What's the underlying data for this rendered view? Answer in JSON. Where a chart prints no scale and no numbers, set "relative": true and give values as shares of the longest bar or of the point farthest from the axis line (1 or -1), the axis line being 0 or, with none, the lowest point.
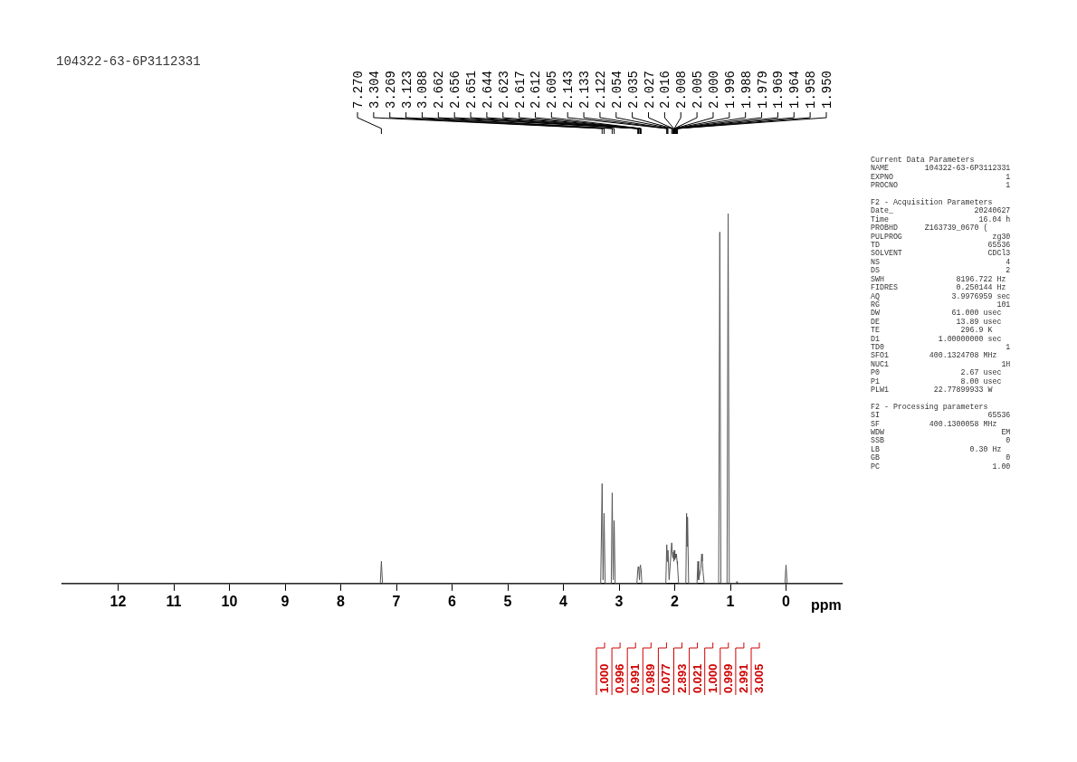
{
  "chart_data": {
    "type": "line",
    "title": "104322-63-6P3112331",
    "xlabel": "ppm",
    "relative": true,
    "xlim": [
      13,
      -1
    ],
    "xticks": [
      12,
      11,
      10,
      9,
      8,
      7,
      6,
      5,
      4,
      3,
      2,
      1,
      0
    ],
    "marker": "none",
    "legend": false,
    "series": [
      {
        "color": "#555555",
        "x": [
          13,
          7.29,
          7.27,
          7.25,
          3.33,
          3.304,
          3.287,
          3.269,
          3.25,
          3.14,
          3.123,
          3.105,
          3.088,
          3.07,
          2.68,
          2.662,
          2.656,
          2.651,
          2.644,
          2.633,
          2.623,
          2.617,
          2.612,
          2.605,
          2.59,
          2.16,
          2.143,
          2.133,
          2.122,
          2.1,
          2.054,
          2.035,
          2.027,
          2.016,
          2.008,
          2.0,
          1.996,
          1.988,
          1.979,
          1.969,
          1.958,
          1.95,
          1.93,
          1.8,
          1.787,
          1.778,
          1.77,
          1.75,
          1.6,
          1.583,
          1.57,
          1.53,
          1.515,
          1.505,
          1.49,
          1.47,
          1.21,
          1.19,
          1.17,
          1.06,
          1.04,
          1.02,
          0.9,
          0.88,
          0.86,
          0.02,
          0.0,
          -0.02,
          -1
        ],
        "values": [
          0,
          0,
          0.06,
          0,
          0,
          0.27,
          0.01,
          0.19,
          0,
          0,
          0.245,
          0.01,
          0.17,
          0,
          0,
          0.04,
          0.045,
          0.04,
          0.045,
          0.01,
          0.045,
          0.05,
          0.045,
          0.04,
          0,
          0,
          0.105,
          0.06,
          0.09,
          0.01,
          0.11,
          0.07,
          0.085,
          0.06,
          0.09,
          0.07,
          0.065,
          0.08,
          0.07,
          0.08,
          0.06,
          0.05,
          0,
          0,
          0.19,
          0.1,
          0.18,
          0,
          0,
          0.06,
          0.01,
          0.04,
          0.08,
          0.06,
          0.03,
          0,
          0,
          0.95,
          0,
          0,
          1,
          0,
          0,
          0.006,
          0,
          0,
          0.05,
          0,
          0
        ]
      }
    ],
    "annotations": [
      {
        "text": "7.270",
        "x": 7.27
      },
      {
        "text": "3.304",
        "x": 3.304
      },
      {
        "text": "3.269",
        "x": 3.269
      },
      {
        "text": "3.123",
        "x": 3.123
      },
      {
        "text": "3.088",
        "x": 3.088
      },
      {
        "text": "2.662",
        "x": 2.662
      },
      {
        "text": "2.656",
        "x": 2.656
      },
      {
        "text": "2.651",
        "x": 2.651
      },
      {
        "text": "2.644",
        "x": 2.644
      },
      {
        "text": "2.623",
        "x": 2.623
      },
      {
        "text": "2.617",
        "x": 2.617
      },
      {
        "text": "2.612",
        "x": 2.612
      },
      {
        "text": "2.605",
        "x": 2.605
      },
      {
        "text": "2.143",
        "x": 2.143
      },
      {
        "text": "2.133",
        "x": 2.133
      },
      {
        "text": "2.122",
        "x": 2.122
      },
      {
        "text": "2.054",
        "x": 2.054
      },
      {
        "text": "2.035",
        "x": 2.035
      },
      {
        "text": "2.027",
        "x": 2.027
      },
      {
        "text": "2.016",
        "x": 2.016
      },
      {
        "text": "2.008",
        "x": 2.008
      },
      {
        "text": "2.005",
        "x": 2.005
      },
      {
        "text": "2.000",
        "x": 2.0
      },
      {
        "text": "1.996",
        "x": 1.996
      },
      {
        "text": "1.988",
        "x": 1.988
      },
      {
        "text": "1.979",
        "x": 1.979
      },
      {
        "text": "1.969",
        "x": 1.969
      },
      {
        "text": "1.964",
        "x": 1.964
      },
      {
        "text": "1.958",
        "x": 1.958
      },
      {
        "text": "1.950",
        "x": 1.95
      },
      "1.000",
      "0.996",
      "0.991",
      "0.989",
      "0.077",
      "2.893",
      "0.021",
      "1.000",
      "0.999",
      "2.991",
      "3.005"
    ],
    "subtitle": "Current Data Parameters\nNAME        104322-63-6P3112331\nEXPNO                         1\nPROCNO                        1\n\nF2 - Acquisition Parameters\nDate_                  20240627\nTime                    16.04 h\nPROBHD      Z163739_0670 (\nPULPROG                    zg30\nTD                        65536\nSOLVENT                   CDCl3\nNS                            4\nDS                            2\nSWH                8196.722 Hz\nFIDRES             0.250144 Hz\nAQ                3.9976959 sec\nRG                          101\nDW                61.000 usec\nDE                 13.89 usec\nTE                  296.9 K\nD1             1.00000000 sec\nTD0                           1\nSFO1         400.1324708 MHz\nNUC1                         1H\nP0                  2.67 usec\nP1                  8.00 usec\nPLW1          22.77899933 W\n\nF2 - Processing parameters\nSI                        65536\nSF           400.1300058 MHz\nWDW                          EM\nSSB                           0\nLB                    0.30 Hz\nGB                            0\nPC                         1.00"
  }
}
